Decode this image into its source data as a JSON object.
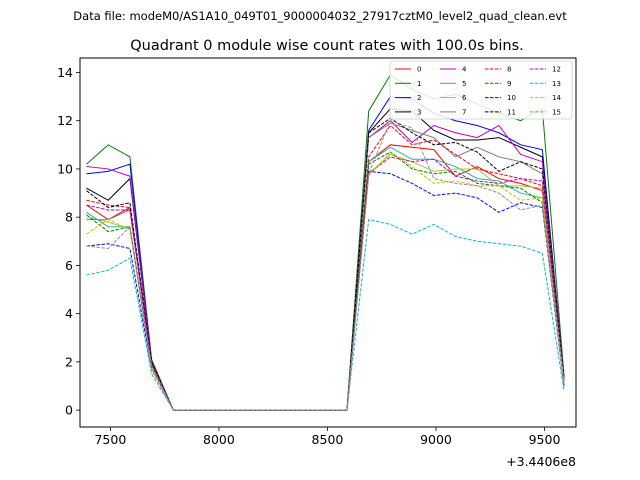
{
  "chart_data": {
    "type": "line",
    "suptitle": "Data file: modeM0/AS1A10_049T01_9000004032_27917cztM0_level2_quad_clean.evt",
    "title": "Quadrant 0 module wise count rates with 100.0s bins.",
    "xlabel": "",
    "ylabel": "",
    "x_offset_label": "+3.4406e8",
    "xlim": [
      7360,
      9645
    ],
    "ylim": [
      -0.7,
      14.6
    ],
    "xticks": [
      7500,
      8000,
      8500,
      9000,
      9500
    ],
    "xtick_labels": [
      "7500",
      "8000",
      "8500",
      "9000",
      "9500"
    ],
    "yticks": [
      0,
      2,
      4,
      6,
      8,
      10,
      12,
      14
    ],
    "ytick_labels": [
      "0",
      "2",
      "4",
      "6",
      "8",
      "10",
      "12",
      "14"
    ],
    "legend_position": "top-right",
    "x": [
      7390,
      7490,
      7590,
      7690,
      7790,
      7890,
      7990,
      8090,
      8190,
      8290,
      8390,
      8490,
      8590,
      8690,
      8790,
      8890,
      8990,
      9090,
      9190,
      9290,
      9390,
      9490,
      9590
    ],
    "series": [
      {
        "name": "0",
        "color": "#ff0000",
        "dash": "solid",
        "values": [
          8.5,
          7.9,
          8.4,
          2.0,
          0,
          0,
          0,
          0,
          0,
          0,
          0,
          0,
          0,
          10.3,
          11.0,
          10.9,
          10.8,
          9.7,
          10.1,
          9.6,
          9.4,
          9.1,
          1.2
        ]
      },
      {
        "name": "1",
        "color": "#008000",
        "dash": "solid",
        "values": [
          10.2,
          11.0,
          10.5,
          2.1,
          0,
          0,
          0,
          0,
          0,
          0,
          0,
          0,
          0,
          12.4,
          13.9,
          13.3,
          12.9,
          13.1,
          12.7,
          12.3,
          12.0,
          12.5,
          1.4
        ]
      },
      {
        "name": "2",
        "color": "#0000ff",
        "dash": "solid",
        "values": [
          9.8,
          9.9,
          10.2,
          2.0,
          0,
          0,
          0,
          0,
          0,
          0,
          0,
          0,
          0,
          11.6,
          13.0,
          12.9,
          12.3,
          12.0,
          11.8,
          11.5,
          11.0,
          10.8,
          1.3
        ]
      },
      {
        "name": "3",
        "color": "#000000",
        "dash": "solid",
        "values": [
          9.2,
          8.7,
          9.6,
          2.0,
          0,
          0,
          0,
          0,
          0,
          0,
          0,
          0,
          0,
          11.5,
          12.5,
          12.4,
          11.6,
          11.2,
          11.2,
          11.3,
          10.9,
          10.5,
          1.3
        ]
      },
      {
        "name": "4",
        "color": "#c000c0",
        "dash": "solid",
        "values": [
          10.1,
          10.0,
          9.7,
          2.0,
          0,
          0,
          0,
          0,
          0,
          0,
          0,
          0,
          0,
          11.3,
          12.0,
          11.1,
          11.8,
          11.5,
          11.3,
          11.8,
          10.6,
          10.3,
          1.3
        ]
      },
      {
        "name": "5",
        "color": "#20b2aa",
        "dash": "solid",
        "values": [
          8.2,
          7.6,
          7.6,
          1.8,
          0,
          0,
          0,
          0,
          0,
          0,
          0,
          0,
          0,
          10.3,
          10.9,
          10.4,
          10.4,
          10.1,
          9.6,
          9.5,
          9.0,
          8.8,
          1.1
        ]
      },
      {
        "name": "6",
        "color": "#9acd32",
        "dash": "solid",
        "values": [
          8.0,
          7.8,
          7.5,
          1.8,
          0,
          0,
          0,
          0,
          0,
          0,
          0,
          0,
          0,
          9.8,
          10.6,
          10.3,
          9.9,
          10.0,
          10.0,
          9.3,
          9.3,
          9.2,
          1.2
        ]
      },
      {
        "name": "7",
        "color": "#808080",
        "dash": "solid",
        "values": [
          7.9,
          7.9,
          8.3,
          1.9,
          0,
          0,
          0,
          0,
          0,
          0,
          0,
          0,
          0,
          11.3,
          11.9,
          11.6,
          11.3,
          10.5,
          10.9,
          10.5,
          10.3,
          9.8,
          1.3
        ]
      },
      {
        "name": "8",
        "color": "#ff0000",
        "dash": "dashed",
        "values": [
          8.7,
          8.5,
          8.4,
          2.0,
          0,
          0,
          0,
          0,
          0,
          0,
          0,
          0,
          0,
          10.5,
          11.8,
          11.0,
          11.2,
          10.6,
          10.0,
          9.8,
          9.6,
          9.3,
          1.2
        ]
      },
      {
        "name": "9",
        "color": "#008000",
        "dash": "dashed",
        "values": [
          8.1,
          7.4,
          7.6,
          1.8,
          0,
          0,
          0,
          0,
          0,
          0,
          0,
          0,
          0,
          10.2,
          10.7,
          10.0,
          9.8,
          9.9,
          9.4,
          9.3,
          9.2,
          8.6,
          1.1
        ]
      },
      {
        "name": "10",
        "color": "#0000ff",
        "dash": "dashed",
        "values": [
          6.8,
          6.9,
          6.7,
          1.7,
          0,
          0,
          0,
          0,
          0,
          0,
          0,
          0,
          0,
          9.9,
          9.8,
          9.4,
          8.9,
          9.0,
          8.8,
          8.2,
          8.6,
          8.4,
          1.0
        ]
      },
      {
        "name": "11",
        "color": "#000000",
        "dash": "dashed",
        "values": [
          9.1,
          8.4,
          8.6,
          2.0,
          0,
          0,
          0,
          0,
          0,
          0,
          0,
          0,
          0,
          11.5,
          12.1,
          11.5,
          11.0,
          11.1,
          10.7,
          9.9,
          10.3,
          10.0,
          1.3
        ]
      },
      {
        "name": "12",
        "color": "#c000c0",
        "dash": "dashed",
        "values": [
          8.5,
          8.3,
          8.3,
          1.9,
          0,
          0,
          0,
          0,
          0,
          0,
          0,
          0,
          0,
          9.8,
          10.5,
          10.3,
          10.4,
          9.7,
          9.5,
          9.4,
          9.6,
          9.5,
          1.2
        ]
      },
      {
        "name": "13",
        "color": "#00bcd4",
        "dash": "dashed",
        "values": [
          5.6,
          5.8,
          6.3,
          1.5,
          0,
          0,
          0,
          0,
          0,
          0,
          0,
          0,
          0,
          7.9,
          7.7,
          7.3,
          7.7,
          7.2,
          7.0,
          6.9,
          6.8,
          6.5,
          0.8
        ]
      },
      {
        "name": "14",
        "color": "#c8c800",
        "dash": "dashed",
        "values": [
          7.3,
          7.9,
          7.5,
          1.8,
          0,
          0,
          0,
          0,
          0,
          0,
          0,
          0,
          0,
          9.7,
          10.7,
          10.1,
          9.4,
          9.5,
          9.3,
          9.3,
          8.7,
          8.8,
          1.1
        ]
      },
      {
        "name": "15",
        "color": "#909090",
        "dash": "dashed",
        "values": [
          6.8,
          6.7,
          7.6,
          1.7,
          0,
          0,
          0,
          0,
          0,
          0,
          0,
          0,
          0,
          9.8,
          12.0,
          11.7,
          9.6,
          9.4,
          9.3,
          9.0,
          8.3,
          8.5,
          1.1
        ]
      }
    ]
  }
}
